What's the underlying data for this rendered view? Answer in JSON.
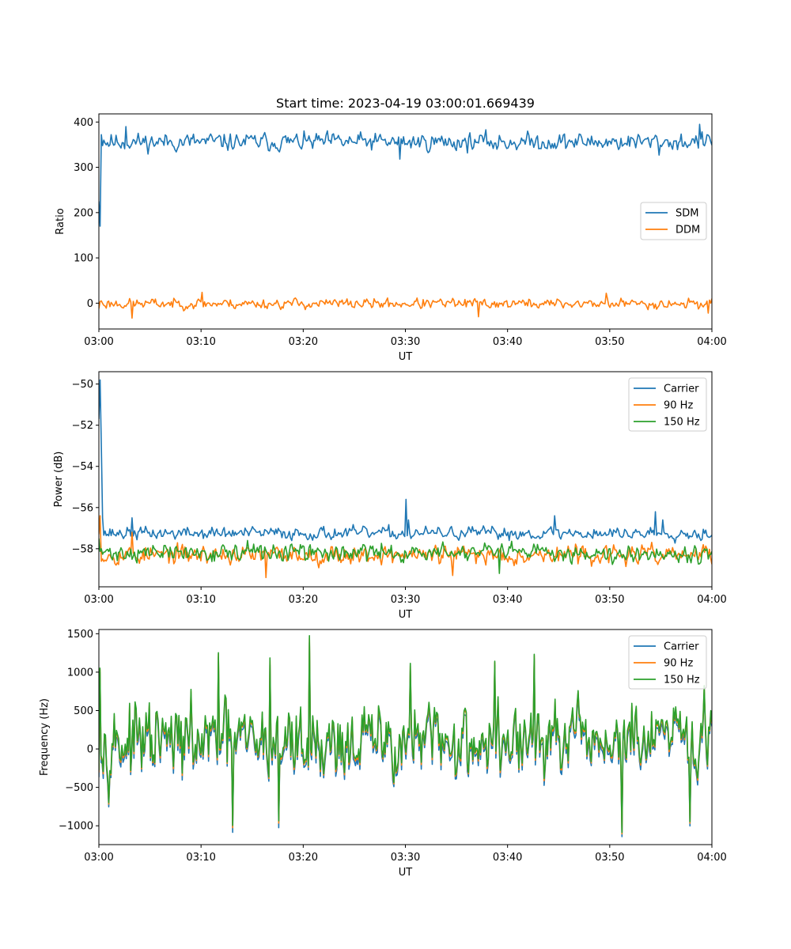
{
  "figure": {
    "title": "Start time: 2023-04-19 03:00:01.669439"
  },
  "colors": {
    "blue": "#1f77b4",
    "orange": "#ff7f0e",
    "green": "#2ca02c"
  },
  "chart_data": [
    {
      "type": "line",
      "title": "Start time: 2023-04-19 03:00:01.669439",
      "xlabel": "UT",
      "ylabel": "Ratio",
      "x_range_minutes": [
        0,
        60
      ],
      "xticks": [
        "03:00",
        "03:10",
        "03:20",
        "03:30",
        "03:40",
        "03:50",
        "04:00"
      ],
      "xtick_minutes": [
        0,
        10,
        20,
        30,
        40,
        50,
        60
      ],
      "ylim": [
        -57,
        418
      ],
      "yticks": [
        0,
        100,
        200,
        300,
        400
      ],
      "ytick_labels": [
        "0",
        "100",
        "200",
        "300",
        "400"
      ],
      "legend": {
        "location": "center-right",
        "entries": [
          "SDM",
          "DDM"
        ]
      },
      "series": [
        {
          "name": "SDM",
          "color": "#1f77b4",
          "generated": {
            "n": 500,
            "seed": 11,
            "base": 356,
            "noise": 14,
            "min": 318,
            "max": 396,
            "peaks": [
              [
                0.05,
                225
              ],
              [
                0.15,
                170
              ],
              [
                0.3,
                372
              ],
              [
                0.45,
                360
              ],
              [
                2.6,
                390
              ],
              [
                29.5,
                318
              ],
              [
                39.0,
                340
              ],
              [
                54.8,
                327
              ],
              [
                58.8,
                395
              ]
            ]
          }
        },
        {
          "name": "DDM",
          "color": "#ff7f0e",
          "generated": {
            "n": 500,
            "seed": 23,
            "base": -1,
            "noise": 8,
            "min": -33,
            "max": 24,
            "peaks": [
              [
                0.05,
                -12
              ],
              [
                0.3,
                5
              ],
              [
                3.3,
                -33
              ],
              [
                10.1,
                24
              ],
              [
                37.1,
                -30
              ],
              [
                49.7,
                22
              ],
              [
                59.6,
                -22
              ],
              [
                60.0,
                10
              ]
            ]
          }
        }
      ]
    },
    {
      "type": "line",
      "title": "",
      "xlabel": "UT",
      "ylabel": "Power (dB)",
      "x_range_minutes": [
        0,
        60
      ],
      "xticks": [
        "03:00",
        "03:10",
        "03:20",
        "03:30",
        "03:40",
        "03:50",
        "04:00"
      ],
      "xtick_minutes": [
        0,
        10,
        20,
        30,
        40,
        50,
        60
      ],
      "ylim": [
        -59.85,
        -49.4
      ],
      "yticks": [
        -58,
        -56,
        -54,
        -52,
        -50
      ],
      "ytick_labels": [
        "−58",
        "−56",
        "−54",
        "−52",
        "−50"
      ],
      "legend": {
        "location": "top-right",
        "entries": [
          "Carrier",
          "90 Hz",
          "150 Hz"
        ]
      },
      "series": [
        {
          "name": "Carrier",
          "color": "#1f77b4",
          "generated": {
            "n": 500,
            "seed": 37,
            "base": -57.25,
            "noise": 0.22,
            "min": -57.9,
            "max": -56.3,
            "peaks": [
              [
                0.05,
                -51.7
              ],
              [
                0.12,
                -49.8
              ],
              [
                0.22,
                -53.0
              ],
              [
                0.32,
                -56.5
              ],
              [
                3.2,
                -56.5
              ],
              [
                30.1,
                -55.6
              ],
              [
                30.3,
                -56.6
              ],
              [
                44.6,
                -56.4
              ],
              [
                54.5,
                -56.2
              ],
              [
                55.2,
                -56.6
              ]
            ]
          }
        },
        {
          "name": "90 Hz",
          "color": "#ff7f0e",
          "generated": {
            "n": 500,
            "seed": 53,
            "base": -58.3,
            "noise": 0.32,
            "min": -59.35,
            "max": -57.35,
            "peaks": [
              [
                0.05,
                -57.3
              ],
              [
                0.1,
                -56.4
              ],
              [
                0.35,
                -58.5
              ],
              [
                3.3,
                -57.2
              ],
              [
                16.3,
                -59.4
              ],
              [
                34.6,
                -59.3
              ]
            ]
          }
        },
        {
          "name": "150 Hz",
          "color": "#2ca02c",
          "generated": {
            "n": 500,
            "seed": 71,
            "base": -58.2,
            "noise": 0.3,
            "min": -59.2,
            "max": -57.4,
            "peaks": [
              [
                0.05,
                -57.5
              ],
              [
                0.2,
                -58.0
              ],
              [
                14.6,
                -57.6
              ],
              [
                39.2,
                -59.2
              ],
              [
                59.6,
                -58.5
              ]
            ]
          }
        }
      ]
    },
    {
      "type": "line",
      "title": "",
      "xlabel": "UT",
      "ylabel": "Frequency (Hz)",
      "x_range_minutes": [
        0,
        60
      ],
      "xticks": [
        "03:00",
        "03:10",
        "03:20",
        "03:30",
        "03:40",
        "03:50",
        "04:00"
      ],
      "xtick_minutes": [
        0,
        10,
        20,
        30,
        40,
        50,
        60
      ],
      "ylim": [
        -1245,
        1555
      ],
      "yticks": [
        -1000,
        -500,
        0,
        500,
        1000,
        1500
      ],
      "ytick_labels": [
        "−1000",
        "−500",
        "0",
        "500",
        "1000",
        "1500"
      ],
      "legend": {
        "location": "top-right",
        "entries": [
          "Carrier",
          "90 Hz",
          "150 Hz"
        ]
      },
      "series": [
        {
          "name": "Carrier",
          "color": "#1f77b4",
          "generated": {
            "offset": -35
          }
        },
        {
          "name": "90 Hz",
          "color": "#ff7f0e",
          "generated": {
            "offset": 25
          }
        },
        {
          "name": "150 Hz",
          "color": "#2ca02c",
          "generated": {
            "offset": 55
          }
        }
      ],
      "shared_shape": {
        "n": 560,
        "seed": 97,
        "base": 60,
        "noise": 330,
        "min": -1100,
        "max": 1420,
        "peaks": [
          [
            0.1,
            1020
          ],
          [
            11.7,
            1220
          ],
          [
            13.1,
            -1050
          ],
          [
            16.7,
            1130
          ],
          [
            17.6,
            -990
          ],
          [
            20.6,
            1420
          ],
          [
            30.5,
            1060
          ],
          [
            38.7,
            1110
          ],
          [
            42.6,
            1200
          ],
          [
            51.2,
            -1120
          ],
          [
            57.9,
            -980
          ],
          [
            59.2,
            770
          ]
        ]
      }
    }
  ]
}
